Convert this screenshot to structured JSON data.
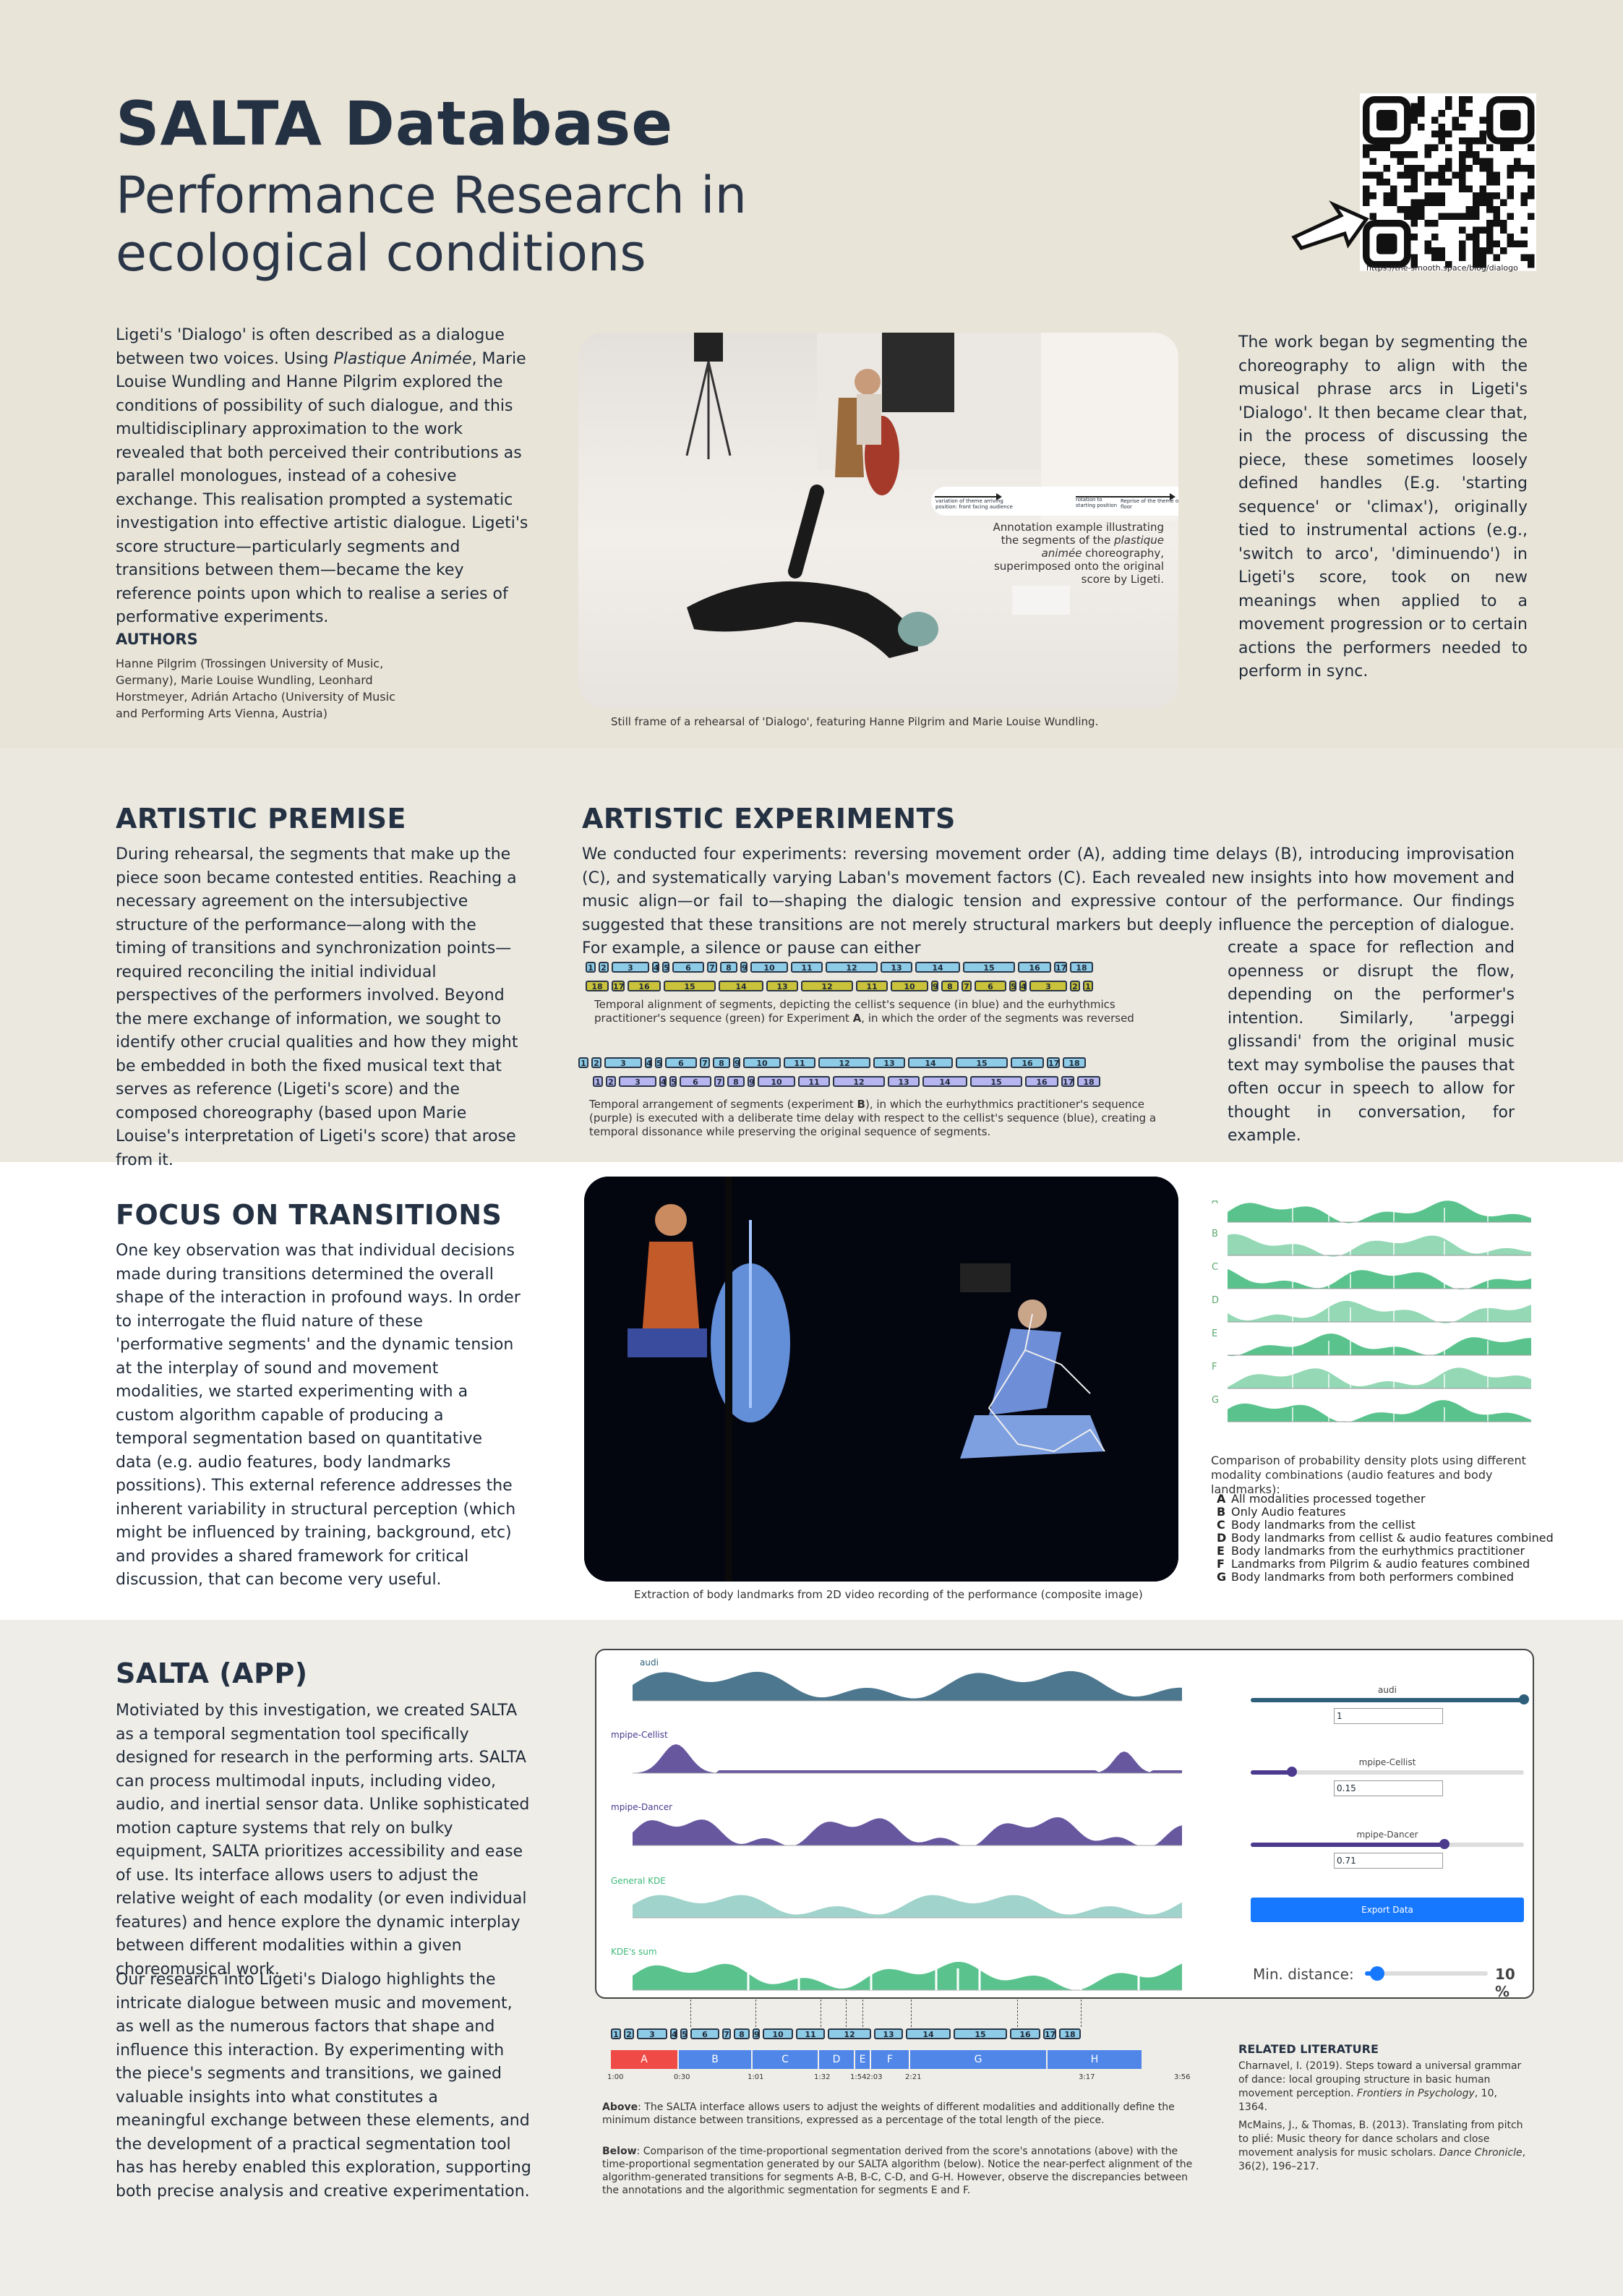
{
  "header": {
    "title": "SALTA Database",
    "subtitle": "Performance Research in ecological conditions",
    "qr_url": "https://the-smooth.space/blog/dialogo"
  },
  "intro": {
    "text_before": "Ligeti's 'Dialogo' is often described as a dialogue between two voices. Using ",
    "text_em": "Plastique Animée",
    "text_after": ", Marie Louise Wundling and Hanne Pilgrim explored the conditions of possibility of such dialogue, and this multidisciplinary approximation to the work revealed that both perceived their contributions as parallel monologues, instead of a cohesive exchange. This realisation prompted a systematic investigation into effective artistic dialogue. Ligeti's score structure—particularly segments and transitions between them—became the key reference points upon which to realise a series of performative experiments.",
    "authors_heading": "AUTHORS",
    "authors_text": "Hanne Pilgrim (Trossingen University of Music, Germany), Marie Louise Wundling, Leonhard Horstmeyer, Adrián Artacho (University of Music and Performing Arts Vienna, Austria)"
  },
  "hero": {
    "annotation_caption_before": "Annotation example illustrating the segments of the ",
    "annotation_caption_em": "plastique animée",
    "annotation_caption_after": " choreography, superimposed onto the original score by Ligeti.",
    "strip_texts": [
      "variation of theme arriving position: front facing audience",
      "rotation to starting position",
      "Reprise of the theme on the floor"
    ],
    "caption": "Still frame of a rehearsal of 'Dialogo', featuring Hanne Pilgrim and Marie Louise Wundling."
  },
  "work": {
    "text": "The work began by segmenting the choreography to align with the musical phrase arcs in Ligeti's 'Dialogo'. It then became clear that, in the process of discussing the piece, these sometimes loosely defined handles (E.g. 'starting sequence' or 'climax'), originally tied to instrumental actions (e.g., 'switch to arco', 'diminuendo') in Ligeti's score, took on new meanings when applied to a movement progression or to certain actions the performers needed to perform in sync."
  },
  "premise": {
    "heading": "ARTISTIC PREMISE",
    "text": "During rehearsal, the segments that make up the piece soon became contested entities. Reaching a necessary agreement on the intersubjective structure of the performance—along with the timing of transitions and synchronization points—required reconciling the initial individual perspectives of the performers involved. Beyond the mere exchange of information, we sought to identify other crucial qualities and how they might be embedded in both the fixed musical text that serves as reference (Ligeti's score) and the composed choreography (based upon Marie Louise's interpretation of Ligeti's score) that arose from it."
  },
  "experiments": {
    "heading": "ARTISTIC EXPERIMENTS",
    "text_full": "We conducted four experiments: reversing movement order (A), adding time delays (B), introducing improvisation (C), and systematically varying Laban's movement factors (C). Each revealed new insights into how movement and music align—or fail to—shaping the dialogic tension and expressive contour of the performance. Our findings suggested that these transitions are not merely structural markers but deeply influence the perception of dialogue. For example, a silence or pause can either",
    "text_side": "create a space for reflection and openness or disrupt the flow, depending on the performer's intention. Similarly, 'arpeggi glissandi' from the original music text may symbolise the pauses that often occur in speech to allow for thought in conversation, for example.",
    "fig1_caption_before": "Temporal alignment of segments, depicting the cellist's sequence (in blue) and the eurhythmics practitioner's sequence (green) for Experiment ",
    "fig1_caption_bold": "A",
    "fig1_caption_after": ", in which the order of the segments was reversed",
    "fig2_caption_before": "Temporal arrangement of segments (experiment ",
    "fig2_caption_bold": "B",
    "fig2_caption_after": "), in which the eurhythmics practitioner's sequence (purple) is executed with a deliberate time delay with respect to the cellist's sequence (blue), creating a temporal dissonance while preserving the original sequence of segments."
  },
  "focus": {
    "heading": "FOCUS ON TRANSITIONS",
    "text": "One key observation was that individual decisions made during transitions determined the overall shape of the interaction in profound ways. In order to interrogate the fluid nature of these 'performative segments' and the dynamic tension at the interplay of sound and movement modalities, we started experimenting with a custom algorithm capable of producing a temporal segmentation based on quantitative data (e.g. audio features, body landmarks possitions). This external reference addresses the inherent variability in structural perception (which might be influenced by training, background, etc) and provides a shared framework for critical discussion, that can become very useful.",
    "photo_caption": "Extraction of body landmarks from 2D video recording of the performance (composite image)",
    "density_caption": "Comparison of probability density plots using different modality combinations (audio features and body landmarks):",
    "legend": [
      {
        "key": "A",
        "text": "All modalities processed together"
      },
      {
        "key": "B",
        "text": "Only Audio features"
      },
      {
        "key": "C",
        "text": "Body landmarks from the cellist"
      },
      {
        "key": "D",
        "text": "Body landmarks from cellist & audio features combined"
      },
      {
        "key": "E",
        "text": "Body landmarks from the eurhythmics practitioner"
      },
      {
        "key": "F",
        "text": "Landmarks from Pilgrim & audio features combined"
      },
      {
        "key": "G",
        "text": "Body landmarks from both performers combined"
      }
    ]
  },
  "app": {
    "heading": "SALTA (APP)",
    "text1": "Motiviated by this investigation, we created SALTA as a temporal segmentation tool specifically designed for research in the performing arts. SALTA can process multimodal inputs, including video, audio, and inertial sensor data. Unlike sophisticated motion capture systems that rely on bulky equipment, SALTA prioritizes accessibility and ease of use. Its interface allows users to adjust the relative weight of each modality (or even individual features) and hence explore the dynamic interplay between different modalities within a given choreomusical work.",
    "text2": "Our research into Ligeti's Dialogo highlights the intricate dialogue between music and movement, as well as the numerous factors that shape and influence this interaction. By experimenting with the piece's segments and transitions, we gained valuable insights into what constitutes a meaningful exchange between these elements, and the development of a practical segmentation tool has has hereby enabled this exploration, supporting both precise analysis and creative experimentation.",
    "ui": {
      "track_labels": [
        "audi",
        "mpipe-Cellist",
        "mpipe-Dancer",
        "General KDE",
        "KDE's sum"
      ],
      "sliders": [
        {
          "label": "audi",
          "value": "1",
          "fraction": 1.0
        },
        {
          "label": "mpipe-Cellist",
          "value": "0.15",
          "fraction": 0.15
        },
        {
          "label": "mpipe-Dancer",
          "value": "0.71",
          "fraction": 0.71
        }
      ],
      "export_label": "Export Data",
      "min_distance_label": "Min. distance:",
      "min_distance_value": "10 %",
      "min_distance_fraction": 0.1
    },
    "timeline": {
      "segments_top": [
        "1",
        "2",
        "3",
        "4",
        "5",
        "6",
        "7",
        "8",
        "9",
        "10",
        "11",
        "12",
        "13",
        "14",
        "15",
        "16",
        "17",
        "18"
      ],
      "letters": [
        "A",
        "B",
        "C",
        "D",
        "E",
        "F",
        "G",
        "H"
      ],
      "times": [
        "1:00",
        "0:30",
        "1:01",
        "1:32",
        "1:54",
        "2:03",
        "2:21",
        "3:17",
        "3:56"
      ]
    },
    "caption_above_bold": "Above",
    "caption_above": ": The SALTA interface allows users to adjust the weights of different modalities and additionally define the minimum distance between transitions, expressed as a percentage of the total length of the piece.",
    "caption_below_bold": "Below",
    "caption_below": ": Comparison of the time-proportional segmentation derived from the score's annotations (above) with the time-proportional segmentation generated by our SALTA algorithm (below). Notice the near-perfect alignment of the algorithm-generated transitions for segments A-B, B-C, C-D, and G-H. However, observe the discrepancies between the annotations and the algorithmic segmentation for segments E and F.",
    "lit_heading": "RELATED LITERATURE",
    "lit1_before": "Charnavel, I. (2019). Steps toward a universal grammar of dance: local grouping structure in basic human movement perception. ",
    "lit1_em": "Frontiers in Psychology",
    "lit1_after": ", 10, 1364.",
    "lit2_before": "McMains, J., & Thomas, B. (2013). Translating from pitch to plié: Music theory for dance scholars and close movement analysis for music scholars. ",
    "lit2_em": "Dance Chronicle",
    "lit2_after": ", 36(2), 196–217."
  },
  "colors": {
    "navy": "#243142",
    "green": "#3db879",
    "purple": "#4b3a8e",
    "teal": "#2d5f7a",
    "export": "#1677ff"
  }
}
